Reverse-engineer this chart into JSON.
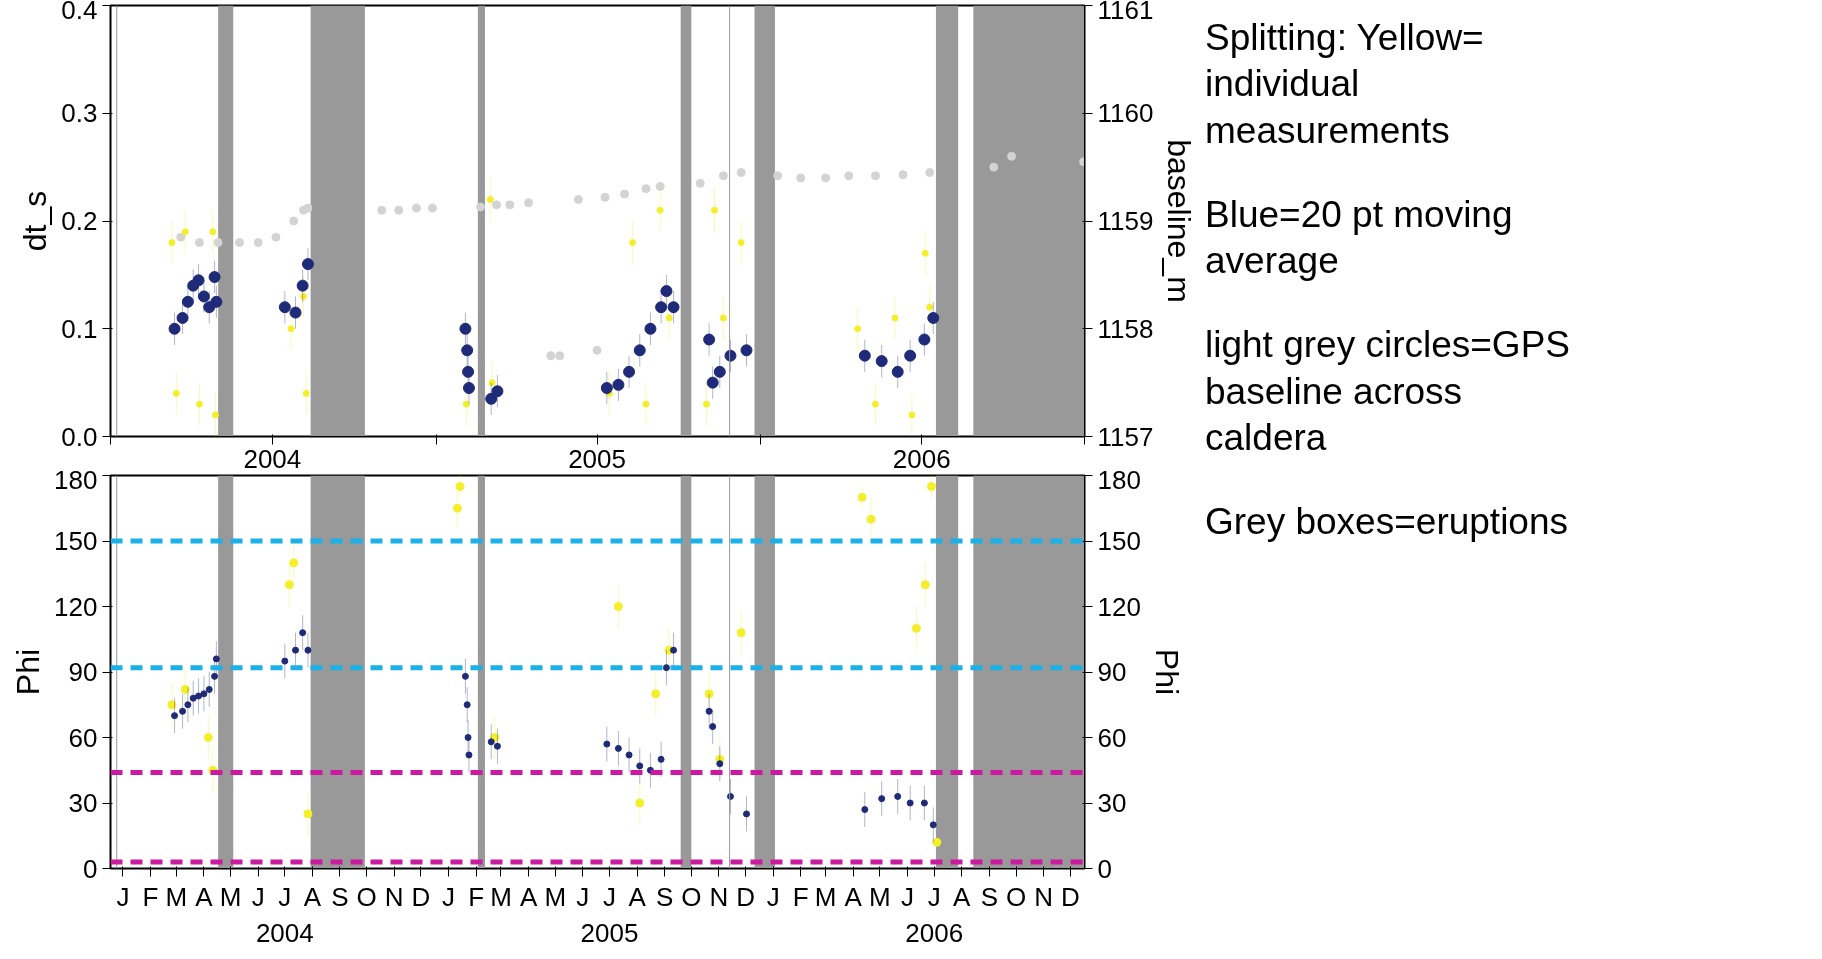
{
  "chart_data": [
    {
      "type": "scatter",
      "ylabel": "dt_s",
      "y2label": "baseline_m",
      "xlim": [
        "2004-01-01",
        "2006-12-31"
      ],
      "ylim": [
        0,
        0.4
      ],
      "yticks": [
        {
          "value": 0,
          "label": "0.0"
        },
        0.1,
        0.2,
        0.3,
        0.4
      ],
      "y2lim": [
        1157,
        1161
      ],
      "y2ticks": [
        1157,
        1158,
        1159,
        1160,
        1161
      ],
      "xticks": [
        {
          "value": "2004-01-01",
          "label": null
        },
        {
          "value": "2004-07-01",
          "label": "2004"
        },
        {
          "value": "2005-01-01",
          "label": null
        },
        {
          "value": "2005-07-01",
          "label": "2005"
        },
        {
          "value": "2006-01-01",
          "label": null
        },
        {
          "value": "2006-07-01",
          "label": "2006"
        },
        {
          "value": "2006-12-31",
          "label": null
        }
      ],
      "grid": false,
      "marker": "circle",
      "annotations": [
        "Splitting: Yellow= individual measurements",
        "Blue=20 pt moving average",
        "light grey circles=GPS baseline across caldera",
        "Grey boxes=eruptions"
      ],
      "bands": [
        {
          "axis": "x",
          "from": "2004-05-01",
          "to": "2004-05-18",
          "color": "#999999"
        },
        {
          "axis": "x",
          "from": "2004-08-13",
          "to": "2004-10-13",
          "color": "#999999"
        },
        {
          "axis": "x",
          "from": "2005-02-17",
          "to": "2005-02-25",
          "color": "#999999"
        },
        {
          "axis": "x",
          "from": "2005-10-03",
          "to": "2005-10-15",
          "color": "#999999"
        },
        {
          "axis": "x",
          "from": "2005-12-25",
          "to": "2006-01-17",
          "color": "#999999"
        },
        {
          "axis": "x",
          "from": "2006-07-17",
          "to": "2006-08-11",
          "color": "#999999"
        },
        {
          "axis": "x",
          "from": "2006-08-28",
          "to": "2006-12-31",
          "color": "#999999"
        }
      ],
      "ref_lines": [
        {
          "axis": "x",
          "value": "2004-01-08",
          "color": "#999999"
        },
        {
          "axis": "x",
          "value": "2005-11-27",
          "color": "#999999"
        }
      ],
      "series": [
        {
          "color": "#d3d3d3",
          "axis": "y2",
          "x": [
            "2004-03-20",
            "2004-04-10",
            "2004-05-01",
            "2004-05-25",
            "2004-06-15",
            "2004-07-05",
            "2004-07-25",
            "2004-08-05",
            "2004-08-10",
            "2004-11-01",
            "2004-11-20",
            "2004-12-10",
            "2004-12-28",
            "2005-02-20",
            "2005-03-10",
            "2005-03-25",
            "2005-04-15",
            "2005-05-10",
            "2005-05-20",
            "2005-06-10",
            "2005-07-01",
            "2005-07-10",
            "2005-08-01",
            "2005-08-25",
            "2005-09-10",
            "2005-10-25",
            "2005-11-20",
            "2005-12-10",
            "2006-01-20",
            "2006-02-15",
            "2006-03-15",
            "2006-04-10",
            "2006-05-10",
            "2006-06-10",
            "2006-07-10",
            "2006-09-20",
            "2006-10-10",
            "2006-12-30"
          ],
          "values": [
            1158.85,
            1158.8,
            1158.8,
            1158.8,
            1158.8,
            1158.85,
            1159.0,
            1159.1,
            1159.12,
            1159.1,
            1159.1,
            1159.12,
            1159.12,
            1159.13,
            1159.15,
            1159.15,
            1159.17,
            1157.75,
            1157.75,
            1159.2,
            1157.8,
            1159.22,
            1159.25,
            1159.3,
            1159.32,
            1159.35,
            1159.42,
            1159.45,
            1159.42,
            1159.4,
            1159.4,
            1159.42,
            1159.42,
            1159.43,
            1159.45,
            1159.5,
            1159.6,
            1159.55
          ]
        },
        {
          "color": "#f5ef2a",
          "x": [
            "2004-03-10",
            "2004-03-15",
            "2004-03-25",
            "2004-04-10",
            "2004-04-25",
            "2004-04-28",
            "2004-07-22",
            "2004-08-05",
            "2004-08-08",
            "2005-02-04",
            "2005-03-05",
            "2005-03-03",
            "2005-07-15",
            "2005-08-10",
            "2005-08-25",
            "2005-09-10",
            "2005-09-20",
            "2005-11-01",
            "2005-11-10",
            "2005-11-20",
            "2005-12-10",
            "2006-04-20",
            "2006-05-10",
            "2006-06-01",
            "2006-06-20",
            "2006-07-05",
            "2006-07-10"
          ],
          "values": [
            0.18,
            0.04,
            0.19,
            0.03,
            0.19,
            0.02,
            0.1,
            0.13,
            0.04,
            0.03,
            0.05,
            0.22,
            0.04,
            0.18,
            0.03,
            0.21,
            0.11,
            0.03,
            0.21,
            0.11,
            0.18,
            0.1,
            0.03,
            0.11,
            0.02,
            0.17,
            0.12
          ],
          "errors": [
            0.02,
            0.02,
            0.02,
            0.02,
            0.02,
            0.02,
            0.02,
            0.02,
            0.02,
            0.02,
            0.02,
            0.02,
            0.02,
            0.02,
            0.02,
            0.02,
            0.02,
            0.02,
            0.02,
            0.02,
            0.02,
            0.02,
            0.02,
            0.02,
            0.02,
            0.02,
            0.02
          ]
        },
        {
          "color": "#1f2a78",
          "x": [
            "2004-03-13",
            "2004-03-22",
            "2004-03-28",
            "2004-04-03",
            "2004-04-09",
            "2004-04-15",
            "2004-04-21",
            "2004-04-27",
            "2004-04-29",
            "2004-07-15",
            "2004-07-27",
            "2004-08-04",
            "2004-08-10",
            "2005-02-03",
            "2005-02-05",
            "2005-02-06",
            "2005-02-07",
            "2005-03-04",
            "2005-03-11",
            "2005-07-12",
            "2005-07-25",
            "2005-08-06",
            "2005-08-18",
            "2005-08-30",
            "2005-09-11",
            "2005-09-17",
            "2005-09-25",
            "2005-11-04",
            "2005-11-08",
            "2005-11-16",
            "2005-11-28",
            "2005-12-16",
            "2006-04-28",
            "2006-05-17",
            "2006-06-04",
            "2006-06-18",
            "2006-07-04",
            "2006-07-14"
          ],
          "values": [
            0.1,
            0.11,
            0.125,
            0.14,
            0.145,
            0.13,
            0.12,
            0.148,
            0.125,
            0.12,
            0.115,
            0.14,
            0.16,
            0.1,
            0.08,
            0.06,
            0.045,
            0.035,
            0.042,
            0.045,
            0.048,
            0.06,
            0.08,
            0.1,
            0.12,
            0.135,
            0.12,
            0.09,
            0.05,
            0.06,
            0.075,
            0.08,
            0.075,
            0.07,
            0.06,
            0.075,
            0.09,
            0.11
          ],
          "errors": [
            0.015,
            0.015,
            0.015,
            0.015,
            0.015,
            0.015,
            0.015,
            0.015,
            0.015,
            0.015,
            0.015,
            0.015,
            0.015,
            0.015,
            0.015,
            0.015,
            0.015,
            0.015,
            0.015,
            0.015,
            0.015,
            0.015,
            0.015,
            0.015,
            0.015,
            0.015,
            0.015,
            0.015,
            0.015,
            0.015,
            0.015,
            0.015,
            0.015,
            0.015,
            0.015,
            0.015,
            0.015,
            0.015
          ]
        }
      ]
    },
    {
      "type": "scatter",
      "ylabel": "Phi",
      "y2label": "Phi",
      "xlim": [
        "2004-01-01",
        "2006-12-31"
      ],
      "ylim": [
        0,
        180
      ],
      "yticks": [
        0,
        30,
        60,
        90,
        120,
        150,
        180
      ],
      "y2lim": [
        0,
        180
      ],
      "y2ticks": [
        0,
        30,
        60,
        90,
        120,
        150,
        180
      ],
      "xticks": [
        {
          "value": "2004-01-15",
          "label": "J"
        },
        {
          "value": "2004-02-15",
          "label": "F"
        },
        {
          "value": "2004-03-15",
          "label": "M"
        },
        {
          "value": "2004-04-15",
          "label": "A"
        },
        {
          "value": "2004-05-15",
          "label": "M"
        },
        {
          "value": "2004-06-15",
          "label": "J"
        },
        {
          "value": "2004-07-15",
          "label": "J\n2004"
        },
        {
          "value": "2004-08-15",
          "label": "A"
        },
        {
          "value": "2004-09-15",
          "label": "S"
        },
        {
          "value": "2004-10-15",
          "label": "O"
        },
        {
          "value": "2004-11-15",
          "label": "N"
        },
        {
          "value": "2004-12-15",
          "label": "D"
        },
        {
          "value": "2005-01-15",
          "label": "J"
        },
        {
          "value": "2005-02-15",
          "label": "F"
        },
        {
          "value": "2005-03-15",
          "label": "M"
        },
        {
          "value": "2005-04-15",
          "label": "A"
        },
        {
          "value": "2005-05-15",
          "label": "M"
        },
        {
          "value": "2005-06-15",
          "label": "J"
        },
        {
          "value": "2005-07-15",
          "label": "J\n2005"
        },
        {
          "value": "2005-08-15",
          "label": "A"
        },
        {
          "value": "2005-09-15",
          "label": "S"
        },
        {
          "value": "2005-10-15",
          "label": "O"
        },
        {
          "value": "2005-11-15",
          "label": "N"
        },
        {
          "value": "2005-12-15",
          "label": "D"
        },
        {
          "value": "2006-01-15",
          "label": "J"
        },
        {
          "value": "2006-02-15",
          "label": "F"
        },
        {
          "value": "2006-03-15",
          "label": "M"
        },
        {
          "value": "2006-04-15",
          "label": "A"
        },
        {
          "value": "2006-05-15",
          "label": "M"
        },
        {
          "value": "2006-06-15",
          "label": "J"
        },
        {
          "value": "2006-07-15",
          "label": "J\n2006"
        },
        {
          "value": "2006-08-15",
          "label": "A"
        },
        {
          "value": "2006-09-15",
          "label": "S"
        },
        {
          "value": "2006-10-15",
          "label": "O"
        },
        {
          "value": "2006-11-15",
          "label": "N"
        },
        {
          "value": "2006-12-15",
          "label": "D"
        }
      ],
      "grid": false,
      "marker": "circle",
      "bands": [
        {
          "axis": "x",
          "from": "2004-05-01",
          "to": "2004-05-18",
          "color": "#999999"
        },
        {
          "axis": "x",
          "from": "2004-08-13",
          "to": "2004-10-13",
          "color": "#999999"
        },
        {
          "axis": "x",
          "from": "2005-02-17",
          "to": "2005-02-25",
          "color": "#999999"
        },
        {
          "axis": "x",
          "from": "2005-10-03",
          "to": "2005-10-15",
          "color": "#999999"
        },
        {
          "axis": "x",
          "from": "2005-12-25",
          "to": "2006-01-17",
          "color": "#999999"
        },
        {
          "axis": "x",
          "from": "2006-07-17",
          "to": "2006-08-11",
          "color": "#999999"
        },
        {
          "axis": "x",
          "from": "2006-08-28",
          "to": "2006-12-31",
          "color": "#999999"
        }
      ],
      "ref_lines": [
        {
          "axis": "x",
          "value": "2004-01-08",
          "color": "#999999"
        },
        {
          "axis": "x",
          "value": "2005-11-27",
          "color": "#999999"
        },
        {
          "axis": "y",
          "value": 150,
          "color": "#1ab0e8",
          "line_style": "dashed"
        },
        {
          "axis": "y",
          "value": 92,
          "color": "#1ab0e8",
          "line_style": "dashed"
        },
        {
          "axis": "y",
          "value": 44,
          "color": "#cc1aa0",
          "line_style": "dashed"
        },
        {
          "axis": "y",
          "value": 3,
          "color": "#cc1aa0",
          "line_style": "dashed"
        }
      ],
      "series": [
        {
          "color": "#f5ef2a",
          "x": [
            "2004-03-10",
            "2004-03-25",
            "2004-04-20",
            "2004-04-25",
            "2004-07-20",
            "2004-07-25",
            "2004-08-10",
            "2005-01-25",
            "2005-01-28",
            "2005-03-08",
            "2005-07-25",
            "2005-08-18",
            "2005-09-05",
            "2005-09-20",
            "2005-11-04",
            "2005-11-16",
            "2005-12-10",
            "2006-04-25",
            "2006-05-05",
            "2006-06-25",
            "2006-07-05",
            "2006-07-12",
            "2006-07-18"
          ],
          "values": [
            75,
            82,
            60,
            45,
            130,
            140,
            25,
            165,
            175,
            60,
            120,
            30,
            80,
            100,
            80,
            50,
            108,
            170,
            160,
            110,
            130,
            175,
            12
          ],
          "errors": [
            10,
            10,
            10,
            10,
            10,
            10,
            10,
            10,
            5,
            10,
            10,
            10,
            10,
            10,
            10,
            10,
            10,
            5,
            10,
            10,
            10,
            5,
            null
          ]
        },
        {
          "color": "#1f2a78",
          "x": [
            "2004-03-13",
            "2004-03-22",
            "2004-03-28",
            "2004-04-03",
            "2004-04-09",
            "2004-04-15",
            "2004-04-21",
            "2004-04-27",
            "2004-04-29",
            "2004-07-15",
            "2004-07-27",
            "2004-08-04",
            "2004-08-10",
            "2005-02-03",
            "2005-02-05",
            "2005-02-06",
            "2005-02-07",
            "2005-03-04",
            "2005-03-11",
            "2005-07-12",
            "2005-07-25",
            "2005-08-06",
            "2005-08-18",
            "2005-08-30",
            "2005-09-11",
            "2005-09-17",
            "2005-09-25",
            "2005-11-04",
            "2005-11-08",
            "2005-11-16",
            "2005-11-28",
            "2005-12-16",
            "2006-04-28",
            "2006-05-17",
            "2006-06-04",
            "2006-06-18",
            "2006-07-04",
            "2006-07-14"
          ],
          "values": [
            70,
            72,
            75,
            78,
            79,
            80,
            82,
            88,
            96,
            95,
            100,
            108,
            100,
            88,
            75,
            60,
            52,
            58,
            56,
            57,
            55,
            52,
            47,
            45,
            50,
            92,
            100,
            72,
            65,
            48,
            33,
            25,
            27,
            32,
            33,
            30,
            30,
            20
          ],
          "errors": [
            8,
            8,
            8,
            8,
            8,
            8,
            8,
            8,
            8,
            8,
            8,
            8,
            8,
            8,
            8,
            8,
            8,
            8,
            8,
            8,
            8,
            8,
            8,
            8,
            8,
            8,
            8,
            8,
            8,
            8,
            8,
            8,
            8,
            8,
            8,
            8,
            8,
            8
          ]
        }
      ]
    }
  ]
}
